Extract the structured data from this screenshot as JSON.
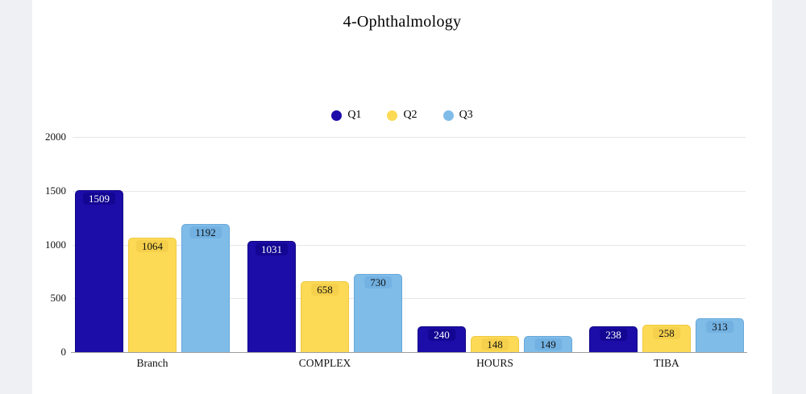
{
  "title": "4-Ophthalmology",
  "colors": {
    "page_background": "#eef0f3",
    "card_background": "#ffffff",
    "gridline": "#e6e6e6",
    "axis_line": "#9e9e9e",
    "text": "#000000"
  },
  "chart_data": {
    "type": "bar",
    "title": "4-Ophthalmology",
    "categories": [
      "Branch",
      "COMPLEX",
      "HOURS",
      "TIBA"
    ],
    "series": [
      {
        "name": "Q1",
        "color": "#1c0ca8",
        "border_color": "#120785",
        "label_bg": "#130692",
        "label_color": "#ffffff",
        "values": [
          1509,
          1031,
          240,
          238
        ]
      },
      {
        "name": "Q2",
        "color": "#fcda55",
        "border_color": "#eec944",
        "label_bg": "#f5d04c",
        "label_color": "#111111",
        "values": [
          1064,
          658,
          148,
          258
        ]
      },
      {
        "name": "Q3",
        "color": "#80bce8",
        "border_color": "#67a8dc",
        "label_bg": "#72b1e2",
        "label_color": "#111111",
        "values": [
          1192,
          730,
          149,
          313
        ]
      }
    ],
    "ylim": [
      0,
      2000
    ],
    "yticks": [
      0,
      500,
      1000,
      1500,
      2000
    ],
    "grid": true,
    "legend_position": "top-center",
    "value_label_position": "inside-top",
    "xlabel": "",
    "ylabel": ""
  }
}
